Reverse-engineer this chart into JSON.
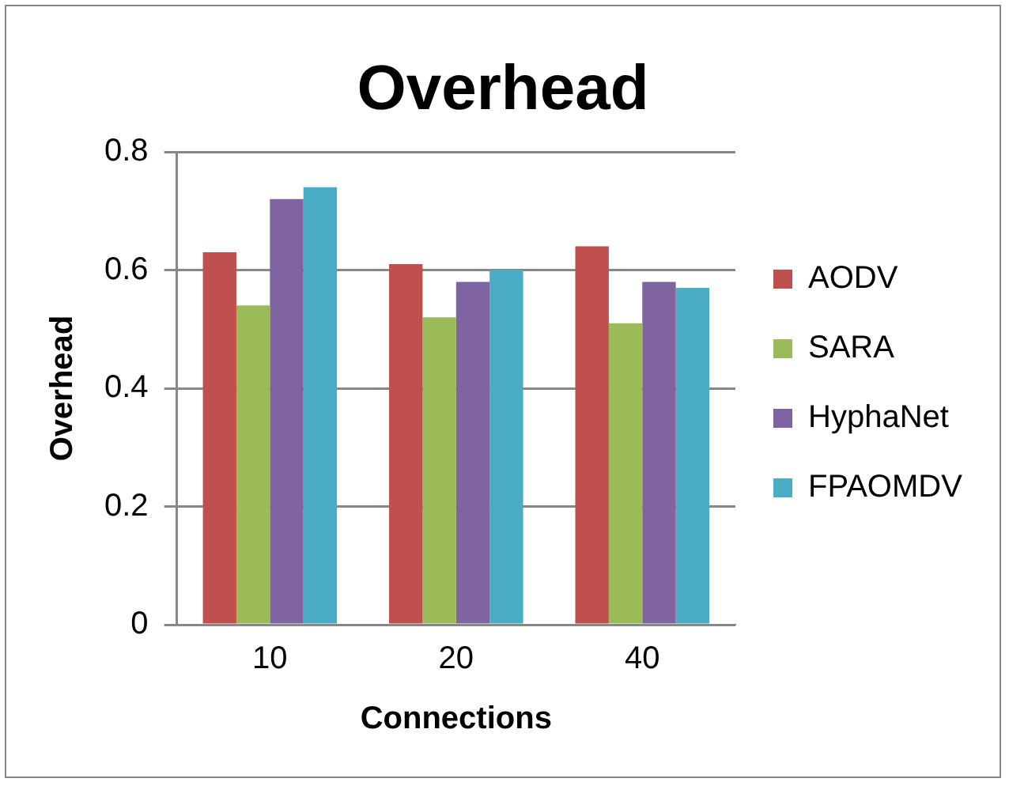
{
  "chart_data": {
    "type": "bar",
    "title": "Overhead",
    "xlabel": "Connections",
    "ylabel": "Overhead",
    "categories": [
      "10",
      "20",
      "40"
    ],
    "series": [
      {
        "name": "AODV",
        "color": "#c0504d",
        "values": [
          0.63,
          0.61,
          0.64
        ]
      },
      {
        "name": "SARA",
        "color": "#9bbb59",
        "values": [
          0.54,
          0.52,
          0.51
        ]
      },
      {
        "name": "HyphaNet",
        "color": "#8064a2",
        "values": [
          0.72,
          0.58,
          0.58
        ]
      },
      {
        "name": "FPAOMDV",
        "color": "#4bacc6",
        "values": [
          0.74,
          0.6,
          0.57
        ]
      }
    ],
    "ylim": [
      0,
      0.8
    ],
    "yticks": [
      0,
      0.2,
      0.4,
      0.6,
      0.8
    ],
    "grid": "y",
    "legend": "right"
  }
}
